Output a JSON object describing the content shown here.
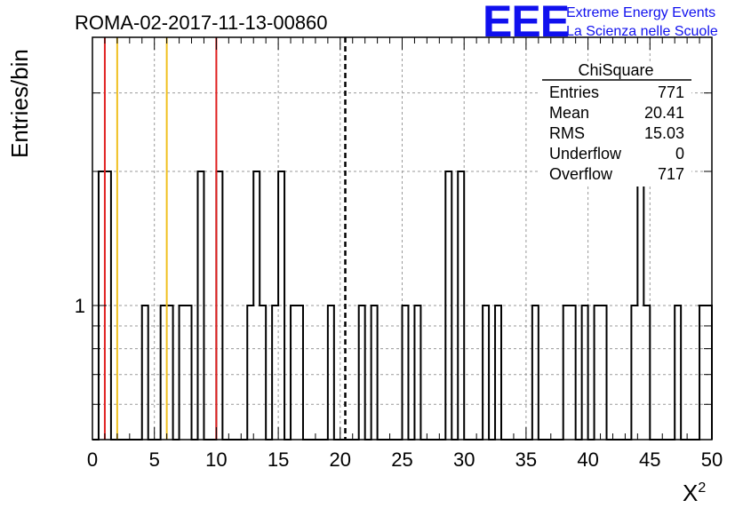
{
  "chart_data": {
    "type": "bar",
    "title": "ROMA-02-2017-11-13-00860",
    "xlabel": "X",
    "xlabel_sup": "2",
    "ylabel": "Entries/bin",
    "xlim": [
      0,
      50
    ],
    "ylim": [
      0.5,
      4
    ],
    "y_scale": "log",
    "grid": true,
    "bin_width": 0.5,
    "x_ticks": [
      0,
      5,
      10,
      15,
      20,
      25,
      30,
      35,
      40,
      45,
      50
    ],
    "y_tick_labels": [
      {
        "value": 1,
        "label": "1"
      }
    ],
    "bins": [
      {
        "x": 0.5,
        "value": 2
      },
      {
        "x": 1.0,
        "value": 2
      },
      {
        "x": 4.0,
        "value": 1
      },
      {
        "x": 5.5,
        "value": 1
      },
      {
        "x": 6.0,
        "value": 1
      },
      {
        "x": 7.0,
        "value": 1
      },
      {
        "x": 7.5,
        "value": 1
      },
      {
        "x": 8.5,
        "value": 2
      },
      {
        "x": 10.0,
        "value": 2
      },
      {
        "x": 12.5,
        "value": 1
      },
      {
        "x": 13.0,
        "value": 2
      },
      {
        "x": 13.5,
        "value": 1
      },
      {
        "x": 14.5,
        "value": 1
      },
      {
        "x": 15.0,
        "value": 2
      },
      {
        "x": 16.0,
        "value": 1
      },
      {
        "x": 16.5,
        "value": 1
      },
      {
        "x": 19.0,
        "value": 1
      },
      {
        "x": 21.5,
        "value": 1
      },
      {
        "x": 22.5,
        "value": 1
      },
      {
        "x": 25.0,
        "value": 1
      },
      {
        "x": 26.0,
        "value": 1
      },
      {
        "x": 28.5,
        "value": 2
      },
      {
        "x": 29.5,
        "value": 2
      },
      {
        "x": 31.5,
        "value": 1
      },
      {
        "x": 32.5,
        "value": 1
      },
      {
        "x": 35.5,
        "value": 1
      },
      {
        "x": 38.0,
        "value": 1
      },
      {
        "x": 38.5,
        "value": 1
      },
      {
        "x": 39.5,
        "value": 1
      },
      {
        "x": 40.5,
        "value": 1
      },
      {
        "x": 41.0,
        "value": 1
      },
      {
        "x": 43.5,
        "value": 1
      },
      {
        "x": 44.0,
        "value": 2
      },
      {
        "x": 44.5,
        "value": 1
      },
      {
        "x": 47.0,
        "value": 1
      },
      {
        "x": 49.0,
        "value": 1
      },
      {
        "x": 49.5,
        "value": 1
      }
    ],
    "vertical_lines": [
      {
        "x": 1.0,
        "color": "#e02020",
        "style": "solid"
      },
      {
        "x": 2.0,
        "color": "#f0c020",
        "style": "solid"
      },
      {
        "x": 6.0,
        "color": "#f0c020",
        "style": "solid"
      },
      {
        "x": 10.0,
        "color": "#e02020",
        "style": "solid"
      },
      {
        "x": 20.41,
        "color": "#000000",
        "style": "dashed"
      }
    ],
    "stats_box": {
      "title": "ChiSquare",
      "rows": [
        {
          "label": "Entries",
          "value": "771"
        },
        {
          "label": "Mean",
          "value": "20.41"
        },
        {
          "label": "RMS",
          "value": "15.03"
        },
        {
          "label": "Underflow",
          "value": "0"
        },
        {
          "label": "Overflow",
          "value": "717"
        }
      ]
    }
  },
  "logo": {
    "text": "EEE",
    "line1": "Extreme Energy Events",
    "line2": "La Scienza nelle Scuole",
    "color": "#1010ee"
  }
}
